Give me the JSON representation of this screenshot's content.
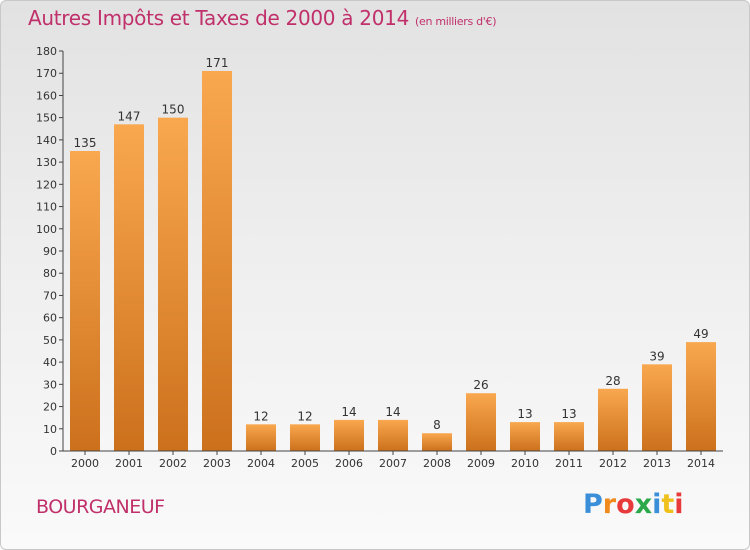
{
  "title": "Autres Impôts et Taxes de 2000 à 2014",
  "unit": "(en milliers d'€)",
  "place": "BOURGANEUF",
  "logo": [
    "P",
    "r",
    "o",
    "x",
    "i",
    "t",
    "i"
  ],
  "logo_colors": [
    "#3a8fd8",
    "#f08a1c",
    "#e83a3a",
    "#2aa84a",
    "#3a8fd8",
    "#f0c01c",
    "#e83a3a"
  ],
  "colors": {
    "accent": "#c0306a",
    "bar_light": "#f7a24a",
    "bar_dark": "#cf7420"
  },
  "chart_data": {
    "type": "bar",
    "categories": [
      "2000",
      "2001",
      "2002",
      "2003",
      "2004",
      "2005",
      "2006",
      "2007",
      "2008",
      "2009",
      "2010",
      "2011",
      "2012",
      "2013",
      "2014"
    ],
    "values": [
      135,
      147,
      150,
      171,
      12,
      12,
      14,
      14,
      8,
      26,
      13,
      13,
      28,
      39,
      49
    ],
    "ylim": [
      0,
      180
    ],
    "yticks": [
      0,
      10,
      20,
      30,
      40,
      50,
      60,
      70,
      80,
      90,
      100,
      110,
      120,
      130,
      140,
      150,
      160,
      170,
      180
    ],
    "grid": false,
    "legend": "none"
  }
}
